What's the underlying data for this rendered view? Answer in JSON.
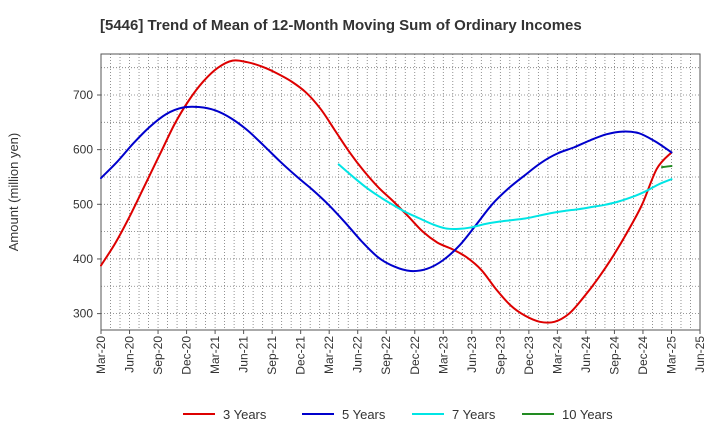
{
  "chart_data": {
    "type": "line",
    "title": "[5446]  Trend of Mean of 12-Month Moving Sum of Ordinary Incomes",
    "xlabel": "",
    "ylabel": "Amount (million yen)",
    "ylim": [
      270,
      775
    ],
    "yticks": [
      300,
      400,
      500,
      600,
      700
    ],
    "x_tick_labels": [
      "Mar-20",
      "Jun-20",
      "Sep-20",
      "Dec-20",
      "Mar-21",
      "Jun-21",
      "Sep-21",
      "Dec-21",
      "Mar-22",
      "Jun-22",
      "Sep-22",
      "Dec-22",
      "Mar-23",
      "Jun-23",
      "Sep-23",
      "Dec-23",
      "Mar-24",
      "Jun-24",
      "Sep-24",
      "Dec-24",
      "Mar-25",
      "Jun-25"
    ],
    "grid": true,
    "legend_position": "bottom",
    "series": [
      {
        "name": "3 Years",
        "color": "#dd0000",
        "start_index": 0,
        "values": [
          388,
          430,
          480,
          535,
          590,
          645,
          690,
          725,
          750,
          763,
          760,
          752,
          740,
          725,
          705,
          675,
          635,
          595,
          560,
          530,
          505,
          478,
          450,
          430,
          418,
          403,
          380,
          345,
          315,
          296,
          285,
          285,
          300,
          330,
          365,
          405,
          450,
          500,
          565,
          595
        ]
      },
      {
        "name": "5 Years",
        "color": "#0000cc",
        "start_index": 0,
        "values": [
          548,
          578,
          612,
          642,
          665,
          677,
          678,
          672,
          657,
          635,
          607,
          578,
          551,
          526,
          498,
          466,
          432,
          403,
          386,
          378,
          382,
          398,
          425,
          462,
          500,
          529,
          553,
          576,
          593,
          604,
          617,
          628,
          633,
          630,
          615,
          595
        ]
      },
      {
        "name": "7 Years",
        "color": "#00e5e5",
        "start_index": 0,
        "values": [
          573,
          552,
          532,
          515,
          500,
          486,
          475,
          464,
          456,
          455,
          458,
          464,
          468,
          471,
          474,
          479,
          484,
          488,
          491,
          495,
          499,
          505,
          513,
          523,
          536,
          546
        ]
      },
      {
        "name": "10 Years",
        "color": "#228B22",
        "start_index": 0,
        "values": [
          568,
          570
        ]
      }
    ]
  },
  "legend": [
    {
      "label": "3 Years",
      "color": "#dd0000"
    },
    {
      "label": "5 Years",
      "color": "#0000cc"
    },
    {
      "label": "7 Years",
      "color": "#00e5e5"
    },
    {
      "label": "10 Years",
      "color": "#228B22"
    }
  ]
}
